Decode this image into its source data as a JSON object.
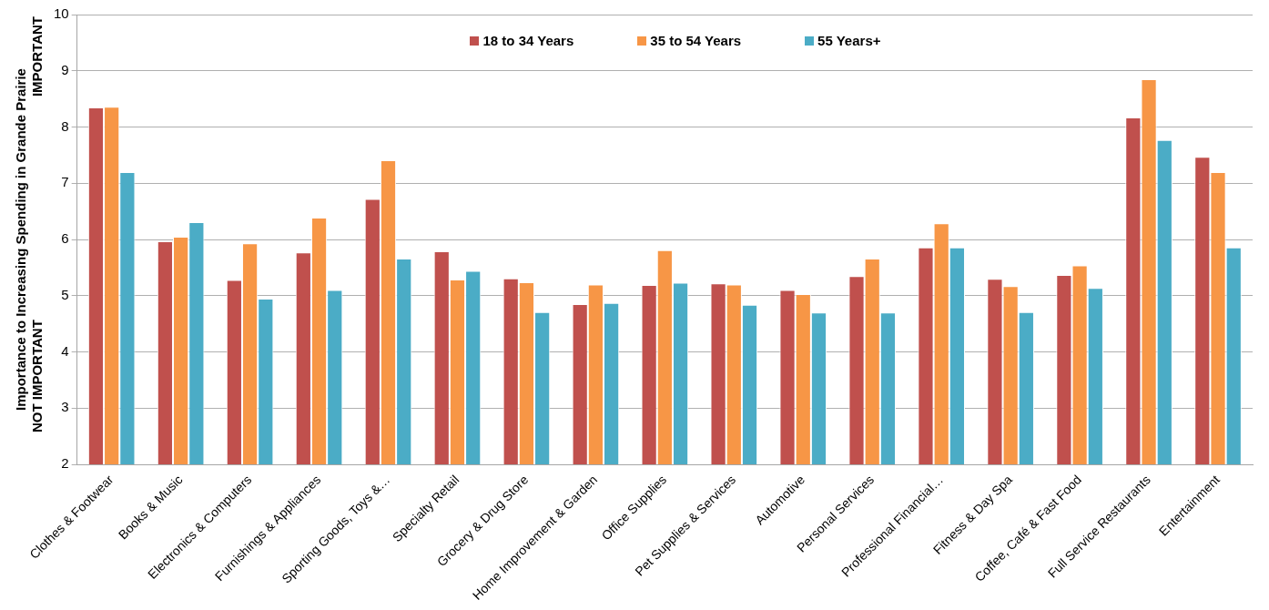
{
  "chart_data": {
    "type": "bar",
    "ylabel": "Importance to Increasing Spending in Grande Prairie",
    "annotations": [
      "NOT IMPORTANT",
      "IMPORTANT"
    ],
    "categories": [
      "Clothes & Footwear",
      "Books & Music",
      "Electronics & Computers",
      "Furnishings & Appliances",
      "Sporting Goods, Toys &…",
      "Specialty Retail",
      "Grocery & Drug Store",
      "Home Improvement & Garden",
      "Office Supplies",
      "Pet Supplies & Services",
      "Automotive",
      "Personal Services",
      "Professional Financial…",
      "Fitness & Day Spa",
      "Coffee, Café & Fast Food",
      "Full Service Restaurants",
      "Entertainment"
    ],
    "series": [
      {
        "name": "18 to 34 Years",
        "color": "#c0504d",
        "values": [
          8.35,
          5.97,
          5.28,
          5.77,
          6.72,
          5.79,
          5.31,
          4.85,
          5.19,
          5.22,
          5.1,
          5.35,
          5.86,
          5.3,
          5.37,
          8.17,
          7.47
        ]
      },
      {
        "name": "35 to 54 Years",
        "color": "#f79646",
        "values": [
          8.36,
          6.05,
          5.93,
          6.39,
          7.41,
          5.29,
          5.24,
          5.2,
          5.81,
          5.2,
          5.03,
          5.66,
          6.29,
          5.17,
          5.54,
          8.85,
          7.2
        ]
      },
      {
        "name": "55 Years+",
        "color": "#4bacc6",
        "values": [
          7.2,
          6.31,
          4.95,
          5.1,
          5.66,
          5.44,
          4.71,
          4.87,
          5.23,
          4.84,
          4.7,
          4.7,
          5.86,
          4.71,
          5.14,
          7.77,
          5.86
        ]
      }
    ],
    "ylim": [
      2,
      10
    ],
    "yticks": [
      2,
      3,
      4,
      5,
      6,
      7,
      8,
      9,
      10
    ],
    "grid": "y",
    "legend": "top"
  }
}
